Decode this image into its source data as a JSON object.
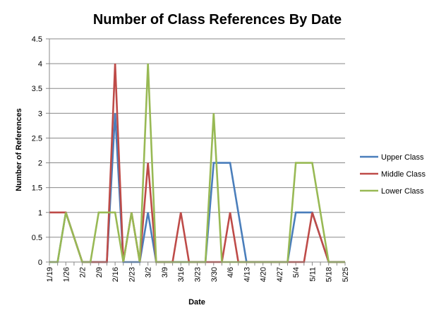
{
  "chart_data": {
    "type": "line",
    "title": "Number of Class References By Date",
    "xlabel": "Date",
    "ylabel": "Number of  References",
    "ylim": [
      0,
      4.5
    ],
    "yticks": [
      "0",
      "0.5",
      "1",
      "1.5",
      "2",
      "2.5",
      "3",
      "3.5",
      "4",
      "4.5"
    ],
    "grid": "horizontal",
    "legend": "right",
    "x_tick_labels": [
      "1/19",
      "1/26",
      "2/2",
      "2/9",
      "2/16",
      "2/23",
      "3/2",
      "3/9",
      "3/16",
      "3/23",
      "3/30",
      "4/6",
      "4/13",
      "4/20",
      "4/27",
      "5/4",
      "5/11",
      "5/18",
      "5/25"
    ],
    "categories": [
      "1/19",
      "1/22",
      "1/26",
      "1/29",
      "2/2",
      "2/5",
      "2/9",
      "2/12",
      "2/16",
      "2/19",
      "2/23",
      "2/26",
      "3/2",
      "3/5",
      "3/9",
      "3/12",
      "3/16",
      "3/19",
      "3/23",
      "3/26",
      "3/30",
      "4/2",
      "4/6",
      "4/9",
      "4/13",
      "4/16",
      "4/20",
      "4/23",
      "4/27",
      "4/30",
      "5/4",
      "5/7",
      "5/11",
      "5/14",
      "5/18",
      "5/21",
      "5/25"
    ],
    "series": [
      {
        "name": "Upper Class",
        "color": "#4a7ebb",
        "values": [
          0,
          0,
          1,
          0.5,
          0,
          0,
          0,
          0,
          3,
          0,
          0,
          0,
          1,
          0,
          0,
          0,
          0,
          0,
          0,
          0,
          2,
          2,
          2,
          1,
          0,
          0,
          0,
          0,
          0,
          0,
          1,
          1,
          1,
          0.5,
          0,
          0,
          0
        ]
      },
      {
        "name": "Middle Class",
        "color": "#be4b48",
        "values": [
          1,
          1,
          1,
          0.5,
          0,
          0,
          0,
          0,
          4,
          0,
          1,
          0,
          2,
          0,
          0,
          0,
          1,
          0,
          0,
          0,
          0,
          0,
          1,
          0,
          0,
          0,
          0,
          0,
          0,
          0,
          0,
          0,
          1,
          0.5,
          0,
          0,
          0
        ]
      },
      {
        "name": "Lower Class",
        "color": "#98b954",
        "values": [
          0,
          0,
          1,
          0.5,
          0,
          0,
          1,
          1,
          1,
          0,
          1,
          0,
          4,
          0,
          0,
          0,
          0,
          0,
          0,
          0,
          3,
          0,
          0,
          0,
          0,
          0,
          0,
          0,
          0,
          0,
          2,
          2,
          2,
          1,
          0,
          0,
          0
        ]
      }
    ]
  }
}
